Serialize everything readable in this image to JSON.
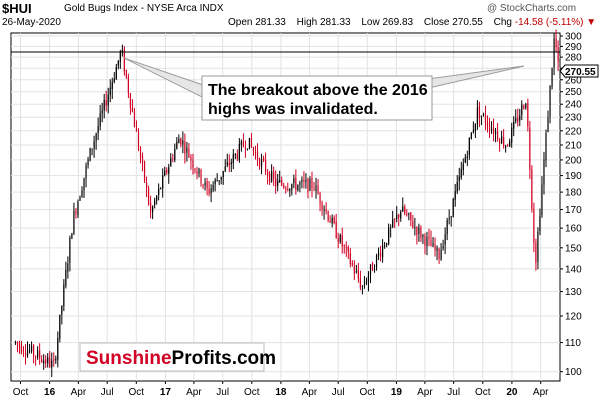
{
  "header": {
    "symbol": "$HUI",
    "name": "Gold Bugs Index - NYSE Arca  INDX",
    "date": "26-May-2020",
    "watermark": "@ StockCharts.com",
    "open_label": "Open",
    "open": "281.33",
    "high_label": "High",
    "high": "281.33",
    "low_label": "Low",
    "low": "269.83",
    "close_label": "Close",
    "close": "270.55",
    "chg_label": "Chg",
    "chg": "-14.58 (-5.11%)",
    "chg_arrow": "▼"
  },
  "colors": {
    "up": "#000000",
    "down": "#d10024",
    "grid": "#e2e2e2",
    "resistance_line": "#000000",
    "brand_red": "#d10024"
  },
  "annotation": {
    "text_line1": "The breakout above the 2016",
    "text_line2": "highs was invalidated."
  },
  "branding": {
    "part1": "Sunshine",
    "part2": "Profits.com"
  },
  "chart_data": {
    "type": "candlestick",
    "title": "$HUI Gold Bugs Index - NYSE Arca INDX",
    "x_tick_labels": [
      "Oct",
      "16",
      "Apr",
      "Jul",
      "Oct",
      "17",
      "Apr",
      "Jul",
      "Oct",
      "18",
      "Apr",
      "Jul",
      "Oct",
      "19",
      "Apr",
      "Jul",
      "Oct",
      "20",
      "Apr"
    ],
    "y_tick_labels": [
      100,
      110,
      120,
      130,
      140,
      150,
      160,
      170,
      180,
      190,
      200,
      210,
      220,
      230,
      240,
      250,
      260,
      270,
      280,
      290,
      300
    ],
    "y_scale": "log",
    "ylim": [
      97,
      303
    ],
    "grid": true,
    "last_price_label": "270.55",
    "horizontal_line_value": 285,
    "key_points": [
      {
        "date": "2015-09",
        "value": 110
      },
      {
        "date": "2016-01",
        "value": 102
      },
      {
        "date": "2016-03",
        "value": 165
      },
      {
        "date": "2016-05",
        "value": 210
      },
      {
        "date": "2016-08",
        "value": 286
      },
      {
        "date": "2016-11",
        "value": 168
      },
      {
        "date": "2017-02",
        "value": 216
      },
      {
        "date": "2017-05",
        "value": 180
      },
      {
        "date": "2017-09",
        "value": 213
      },
      {
        "date": "2017-12",
        "value": 185
      },
      {
        "date": "2018-04",
        "value": 184
      },
      {
        "date": "2018-09",
        "value": 132
      },
      {
        "date": "2019-01",
        "value": 170
      },
      {
        "date": "2019-05",
        "value": 146
      },
      {
        "date": "2019-09",
        "value": 235
      },
      {
        "date": "2019-12",
        "value": 210
      },
      {
        "date": "2020-02",
        "value": 245
      },
      {
        "date": "2020-03",
        "value": 142
      },
      {
        "date": "2020-05",
        "value": 302
      },
      {
        "date": "2020-05-26",
        "value": 270.55
      }
    ]
  }
}
